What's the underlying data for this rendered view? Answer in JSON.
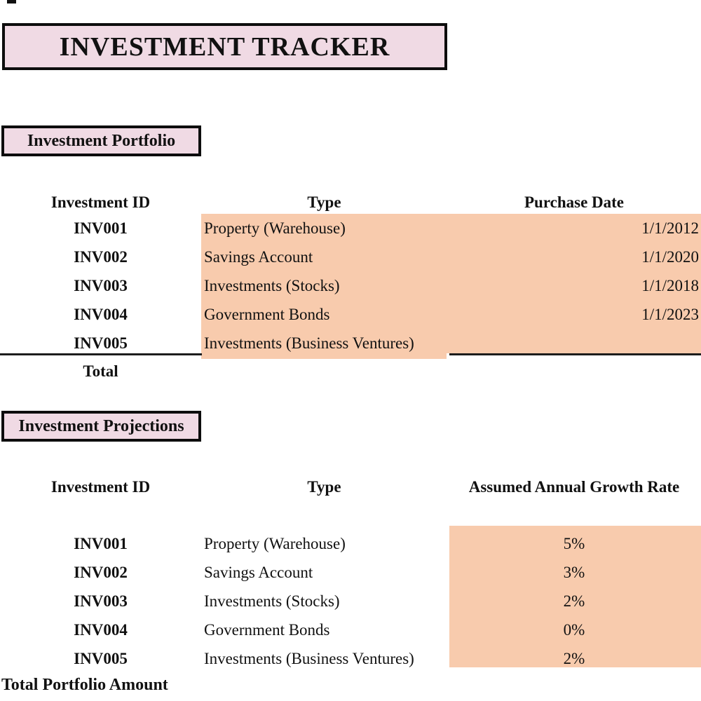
{
  "title": "INVESTMENT TRACKER",
  "colors": {
    "section_pink": "#F0DAE4",
    "highlight_orange": "#F8CBAD",
    "text": "#111111"
  },
  "portfolio": {
    "section_label": "Investment Portfolio",
    "columns": [
      "Investment ID",
      "Type",
      "Purchase Date"
    ],
    "rows": [
      {
        "id": "INV001",
        "type": "Property (Warehouse)",
        "date": "1/1/2012"
      },
      {
        "id": "INV002",
        "type": "Savings Account",
        "date": "1/1/2020"
      },
      {
        "id": "INV003",
        "type": "Investments (Stocks)",
        "date": "1/1/2018"
      },
      {
        "id": "INV004",
        "type": "Government Bonds",
        "date": "1/1/2023"
      },
      {
        "id": "INV005",
        "type": "Investments (Business Ventures)",
        "date": ""
      }
    ],
    "total_label": "Total"
  },
  "projections": {
    "section_label": "Investment Projections",
    "columns": [
      "Investment ID",
      "Type",
      "Assumed Annual Growth Rate"
    ],
    "rows": [
      {
        "id": "INV001",
        "type": "Property (Warehouse)",
        "rate": "5%"
      },
      {
        "id": "INV002",
        "type": "Savings Account",
        "rate": "3%"
      },
      {
        "id": "INV003",
        "type": "Investments (Stocks)",
        "rate": "2%"
      },
      {
        "id": "INV004",
        "type": "Government Bonds",
        "rate": "0%"
      },
      {
        "id": "INV005",
        "type": "Investments (Business Ventures)",
        "rate": "2%"
      }
    ],
    "total_label": "Total Portfolio Amount"
  }
}
